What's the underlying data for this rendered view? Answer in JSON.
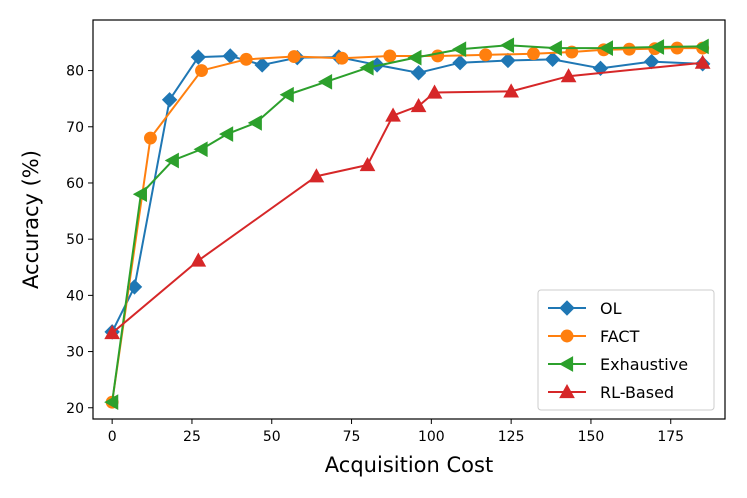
{
  "chart_data": {
    "type": "line",
    "title": "",
    "xlabel": "Acquisition Cost",
    "ylabel": "Accuracy (%)",
    "xlim": [
      -6,
      192
    ],
    "ylim": [
      18,
      89
    ],
    "xticks": [
      0,
      25,
      50,
      75,
      100,
      125,
      150,
      175
    ],
    "yticks": [
      20,
      30,
      40,
      50,
      60,
      70,
      80
    ],
    "grid": false,
    "legend_position": "bottom-right",
    "series": [
      {
        "name": "OL",
        "color": "#1f77b4",
        "marker": "diamond",
        "x": [
          0,
          7,
          18,
          27,
          37,
          47,
          58,
          71,
          83,
          96,
          109,
          124,
          138,
          153,
          169,
          185
        ],
        "y": [
          33.5,
          41.5,
          74.8,
          82.4,
          82.6,
          81.0,
          82.3,
          82.4,
          81.0,
          79.6,
          81.4,
          81.8,
          82.0,
          80.4,
          81.6,
          81.2
        ]
      },
      {
        "name": "FACT",
        "color": "#ff7f0e",
        "marker": "circle",
        "x": [
          0,
          12,
          28,
          42,
          57,
          72,
          87,
          102,
          117,
          132,
          144,
          154,
          162,
          170,
          177,
          185
        ],
        "y": [
          21.0,
          68.0,
          80.0,
          82.0,
          82.5,
          82.2,
          82.6,
          82.6,
          82.8,
          83.0,
          83.3,
          83.7,
          83.8,
          83.9,
          84.0,
          84.0
        ]
      },
      {
        "name": "Exhaustive",
        "color": "#2ca02c",
        "marker": "triangle-left",
        "x": [
          0,
          9,
          19,
          28,
          36,
          45,
          55,
          67,
          80,
          95,
          109,
          124,
          139,
          155,
          171,
          185
        ],
        "y": [
          21.0,
          58.0,
          64.0,
          66.0,
          68.7,
          70.7,
          75.7,
          78.0,
          80.5,
          82.3,
          83.8,
          84.5,
          84.0,
          84.0,
          84.2,
          84.3
        ]
      },
      {
        "name": "RL-Based",
        "color": "#d62728",
        "marker": "triangle-up",
        "x": [
          0,
          27,
          64,
          80,
          88,
          96,
          101,
          125,
          143,
          185
        ],
        "y": [
          33.3,
          46.2,
          61.2,
          63.2,
          72.0,
          73.7,
          76.1,
          76.3,
          79.0,
          81.4
        ]
      }
    ]
  }
}
